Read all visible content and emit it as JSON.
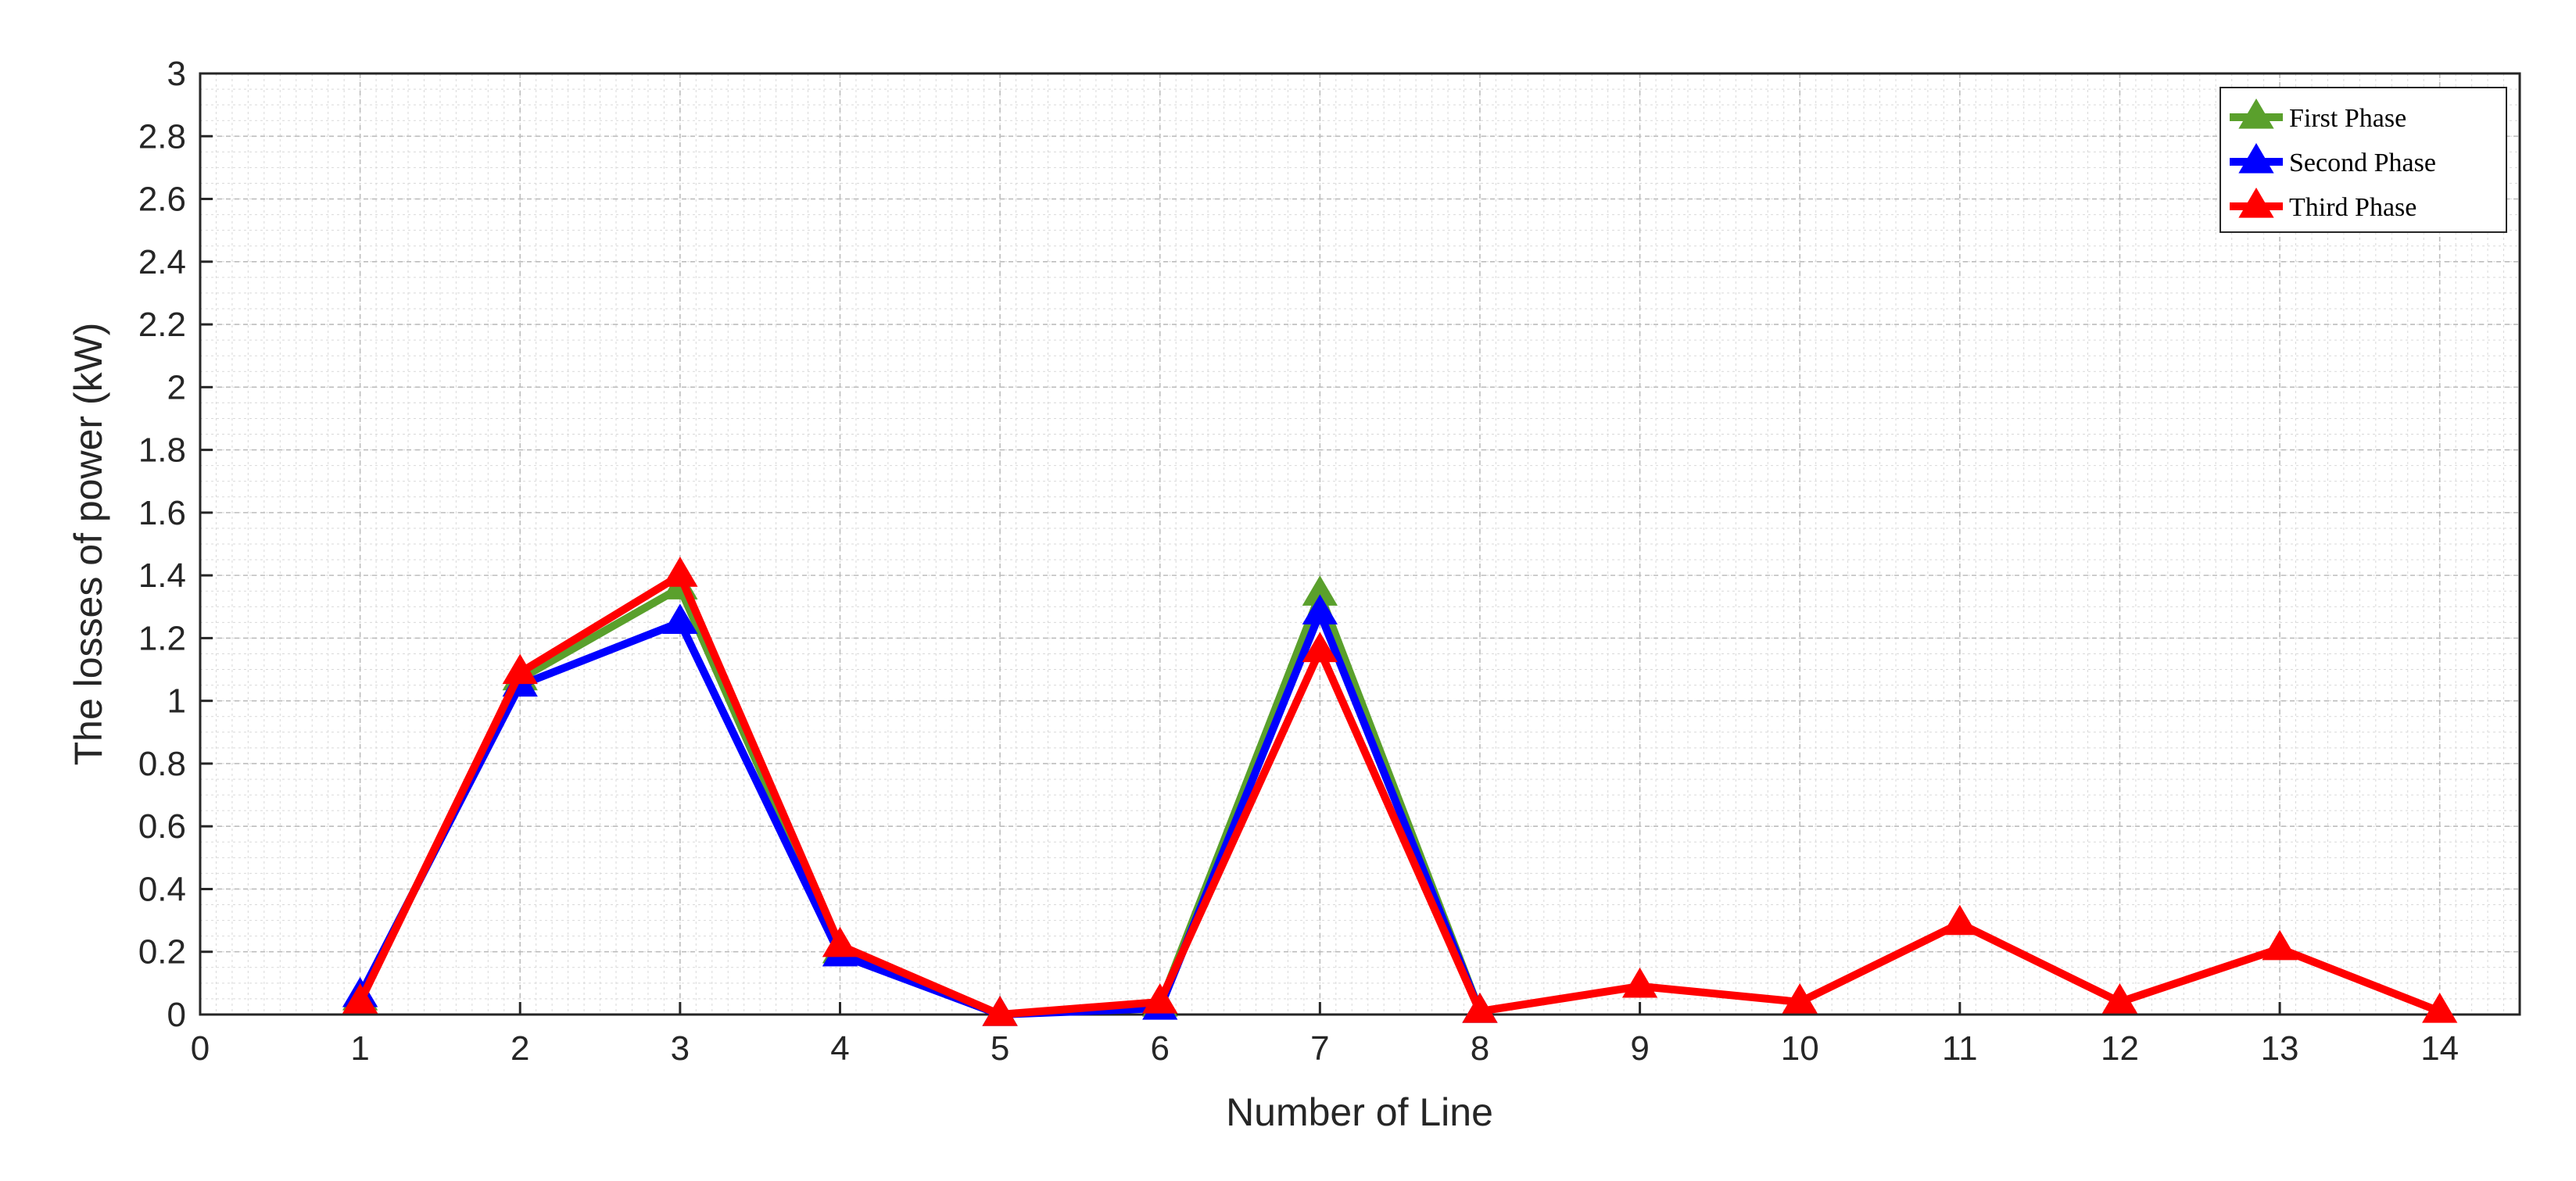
{
  "chart_data": {
    "type": "line",
    "title": "",
    "xlabel": "Number of Line",
    "ylabel": "The losses of power (kW)",
    "xlim": [
      0,
      14.5
    ],
    "ylim": [
      0,
      3
    ],
    "xticks": [
      0,
      1,
      2,
      3,
      4,
      5,
      6,
      7,
      8,
      9,
      10,
      11,
      12,
      13,
      14
    ],
    "yticks": [
      0,
      0.2,
      0.4,
      0.6,
      0.8,
      1,
      1.2,
      1.4,
      1.6,
      1.8,
      2,
      2.2,
      2.4,
      2.6,
      2.8,
      3
    ],
    "ytick_labels": [
      "0",
      "0.2",
      "0.4",
      "0.6",
      "0.8",
      "1",
      "1.2",
      "1.4",
      "1.6",
      "1.8",
      "2",
      "2.2",
      "2.4",
      "2.6",
      "2.8",
      "3"
    ],
    "grid": true,
    "minor_grid": true,
    "legend_position": "top-right",
    "marker": "triangle",
    "series": [
      {
        "name": "First Phase",
        "color": "#5aa02c",
        "x": [
          1,
          2,
          3,
          4,
          5,
          6,
          7,
          8
        ],
        "values": [
          0.05,
          1.07,
          1.36,
          0.2,
          0.0,
          0.03,
          1.34,
          0.01
        ]
      },
      {
        "name": "Second Phase",
        "color": "#0000ff",
        "x": [
          1,
          2,
          3,
          4,
          5,
          6,
          7,
          8
        ],
        "values": [
          0.06,
          1.05,
          1.25,
          0.19,
          0.0,
          0.02,
          1.28,
          0.01
        ]
      },
      {
        "name": "Third Phase",
        "color": "#ff0000",
        "x": [
          1,
          2,
          3,
          4,
          5,
          6,
          7,
          8,
          9,
          10,
          11,
          12,
          13,
          14
        ],
        "values": [
          0.04,
          1.09,
          1.4,
          0.22,
          0.0,
          0.04,
          1.16,
          0.01,
          0.09,
          0.04,
          0.29,
          0.04,
          0.21,
          0.01
        ]
      }
    ]
  }
}
